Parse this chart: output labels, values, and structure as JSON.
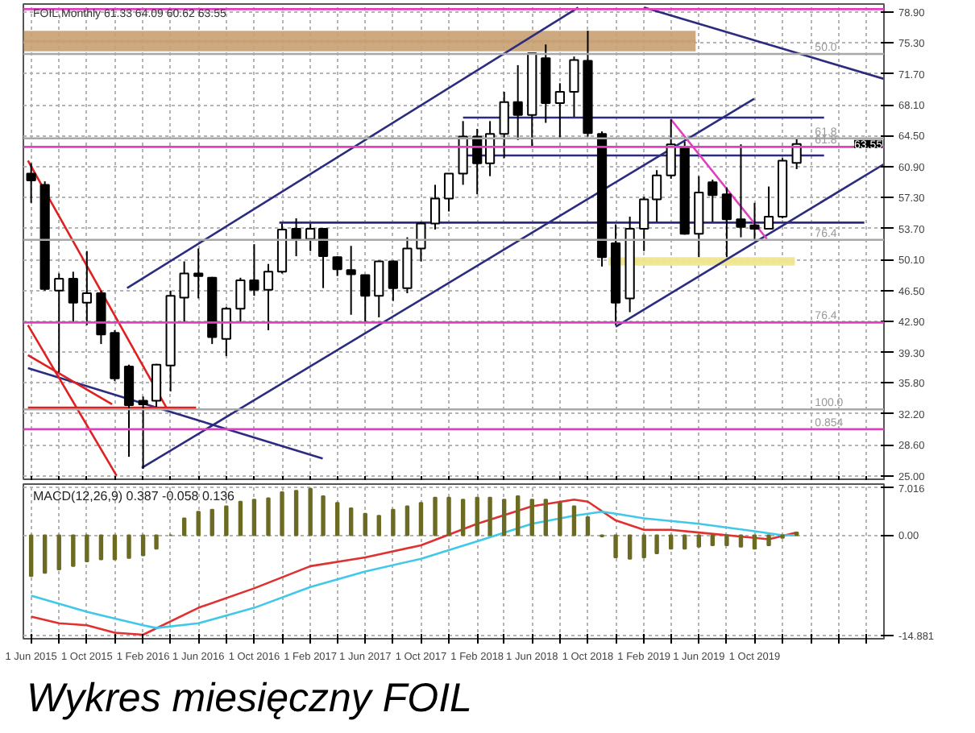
{
  "chart_data": [
    {
      "type": "candlestick",
      "subtitle": "FOIL,Monthly 61.33 64.09 60.62 63.55",
      "x": [
        "2015-06",
        "2015-07",
        "2015-08",
        "2015-09",
        "2015-10",
        "2015-11",
        "2015-12",
        "2016-01",
        "2016-02",
        "2016-03",
        "2016-04",
        "2016-05",
        "2016-06",
        "2016-07",
        "2016-08",
        "2016-09",
        "2016-10",
        "2016-11",
        "2016-12",
        "2017-01",
        "2017-02",
        "2017-03",
        "2017-04",
        "2017-05",
        "2017-06",
        "2017-07",
        "2017-08",
        "2017-09",
        "2017-10",
        "2017-11",
        "2017-12",
        "2018-01",
        "2018-02",
        "2018-03",
        "2018-04",
        "2018-05",
        "2018-06",
        "2018-07",
        "2018-08",
        "2018-09",
        "2018-10",
        "2018-11",
        "2018-12",
        "2019-01",
        "2019-02",
        "2019-03",
        "2019-04",
        "2019-05",
        "2019-06",
        "2019-07",
        "2019-08",
        "2019-09",
        "2019-10",
        "2019-11",
        "2019-12",
        "2020-01"
      ],
      "ohlc": [
        [
          60.1,
          61.3,
          56.7,
          59.3
        ],
        [
          58.8,
          59.2,
          46.5,
          46.7
        ],
        [
          46.5,
          48.5,
          37.0,
          47.9
        ],
        [
          47.9,
          48.7,
          42.8,
          45.1
        ],
        [
          45.1,
          51.1,
          42.5,
          46.2
        ],
        [
          46.2,
          46.5,
          40.3,
          41.4
        ],
        [
          41.6,
          41.9,
          36.0,
          36.3
        ],
        [
          37.7,
          37.9,
          27.2,
          33.2
        ],
        [
          33.7,
          34.2,
          25.8,
          33.3
        ],
        [
          33.7,
          38.0,
          33.0,
          37.9
        ],
        [
          37.8,
          46.5,
          34.8,
          45.9
        ],
        [
          45.7,
          49.9,
          42.8,
          48.5
        ],
        [
          48.5,
          51.4,
          45.6,
          48.2
        ],
        [
          48.0,
          48.1,
          40.3,
          41.1
        ],
        [
          40.9,
          44.6,
          38.9,
          44.4
        ],
        [
          44.4,
          48.0,
          42.8,
          47.7
        ],
        [
          47.7,
          51.9,
          45.9,
          46.6
        ],
        [
          46.6,
          49.6,
          41.9,
          48.7
        ],
        [
          48.7,
          54.3,
          48.5,
          53.6
        ],
        [
          53.7,
          54.9,
          50.5,
          52.5
        ],
        [
          52.5,
          54.3,
          51.1,
          53.7
        ],
        [
          53.7,
          53.7,
          46.8,
          50.5
        ],
        [
          50.4,
          50.5,
          48.2,
          49.0
        ],
        [
          48.9,
          51.7,
          43.7,
          48.4
        ],
        [
          48.3,
          48.3,
          42.8,
          45.9
        ],
        [
          45.9,
          50.0,
          43.4,
          49.9
        ],
        [
          49.9,
          50.0,
          45.3,
          46.8
        ],
        [
          46.8,
          52.7,
          46.2,
          51.4
        ],
        [
          51.4,
          54.5,
          49.9,
          54.3
        ],
        [
          54.3,
          58.8,
          53.6,
          57.2
        ],
        [
          57.2,
          60.1,
          55.7,
          60.1
        ],
        [
          60.1,
          66.2,
          58.8,
          64.4
        ],
        [
          64.4,
          65.3,
          57.7,
          61.3
        ],
        [
          61.3,
          66.2,
          59.8,
          64.7
        ],
        [
          64.7,
          69.6,
          61.9,
          68.4
        ],
        [
          68.4,
          72.7,
          64.0,
          66.9
        ],
        [
          66.9,
          74.1,
          63.2,
          74.1
        ],
        [
          73.5,
          75.1,
          66.0,
          68.3
        ],
        [
          68.3,
          70.6,
          64.3,
          69.6
        ],
        [
          69.6,
          73.7,
          66.7,
          73.3
        ],
        [
          73.2,
          76.7,
          64.4,
          64.8
        ],
        [
          64.7,
          65.0,
          49.3,
          50.4
        ],
        [
          52.0,
          54.2,
          42.5,
          45.1
        ],
        [
          45.6,
          55.1,
          44.0,
          53.7
        ],
        [
          53.7,
          57.4,
          51.1,
          57.1
        ],
        [
          57.1,
          60.5,
          54.5,
          59.9
        ],
        [
          59.9,
          66.4,
          59.5,
          63.5
        ],
        [
          63.2,
          63.8,
          53.0,
          53.1
        ],
        [
          53.1,
          59.8,
          50.4,
          57.9
        ],
        [
          59.1,
          59.4,
          54.5,
          57.6
        ],
        [
          57.7,
          58.5,
          50.4,
          54.8
        ],
        [
          54.8,
          63.5,
          52.7,
          53.9
        ],
        [
          54.1,
          56.7,
          52.4,
          53.7
        ],
        [
          53.7,
          58.6,
          53.6,
          55.1
        ],
        [
          55.1,
          61.9,
          54.9,
          61.6
        ],
        [
          61.33,
          64.09,
          60.62,
          63.55
        ]
      ],
      "series": [
        {
          "type": "line",
          "color": "#c8a072",
          "x": [
            "2015-05-16",
            "2019-05-25"
          ],
          "values": [
            75.5,
            75.5
          ],
          "lower": [
            74.3,
            74.3
          ],
          "upper": [
            76.7,
            76.7
          ]
        },
        {
          "type": "line",
          "color": "#f0e68c",
          "x": [
            "2018-11-15",
            "2019-12-28"
          ],
          "values": [
            49.9,
            49.9
          ],
          "lower": [
            49.4,
            49.4
          ],
          "upper": [
            50.4,
            50.4
          ]
        },
        {
          "type": "line",
          "color": "#2b2b80",
          "x": [
            "2016-01-29",
            "2019-09-30"
          ],
          "values": [
            25.9,
            68.8
          ]
        },
        {
          "type": "line",
          "color": "#2b2b80",
          "x": [
            "2015-12-28",
            "2018-09-10"
          ],
          "values": [
            46.8,
            79.4
          ]
        },
        {
          "type": "line",
          "color": "#2b2b80",
          "x": [
            "2018-12-01",
            "2020-07-10"
          ],
          "values": [
            42.3,
            61.2
          ]
        },
        {
          "type": "line",
          "color": "#2b2b80",
          "x": [
            "2019-02-01",
            "2020-07-10"
          ],
          "values": [
            79.4,
            71.1
          ]
        },
        {
          "type": "line",
          "color": "#2b2b80",
          "x": [
            "2015-05-25",
            "2017-02-28"
          ],
          "values": [
            37.5,
            27.0
          ]
        },
        {
          "type": "line",
          "color": "#2b2b80",
          "x": [
            "2016-11-25",
            "2020-05-28"
          ],
          "values": [
            54.4,
            54.4
          ]
        },
        {
          "type": "line",
          "color": "#2b2b80",
          "x": [
            "2018-01-01",
            "2020-03-01"
          ],
          "values": [
            66.6,
            66.6
          ]
        },
        {
          "type": "line",
          "color": "#2b2b80",
          "x": [
            "2018-01-01",
            "2020-03-01"
          ],
          "values": [
            62.2,
            62.2
          ]
        },
        {
          "type": "line",
          "color": "#e02020",
          "x": [
            "2015-05-25",
            "2016-03-23"
          ],
          "values": [
            61.6,
            32.9
          ]
        },
        {
          "type": "line",
          "color": "#e02020",
          "x": [
            "2015-05-25",
            "2015-12-05"
          ],
          "values": [
            42.5,
            25.0
          ]
        },
        {
          "type": "line",
          "color": "#e02020",
          "x": [
            "2015-05-25",
            "2015-11-25"
          ],
          "values": [
            39.0,
            33.3
          ]
        },
        {
          "type": "line",
          "color": "#e02020",
          "x": [
            "2015-05-25",
            "2016-05-27"
          ],
          "values": [
            32.9,
            32.9
          ]
        },
        {
          "type": "line",
          "color": "#e040c0",
          "x": [
            "2019-04-01",
            "2019-10-28"
          ],
          "values": [
            66.4,
            52.5
          ]
        }
      ],
      "ref_lines": [
        {
          "axis": "y",
          "value": 79.2,
          "color": "#e040c0"
        },
        {
          "axis": "y",
          "value": 74.0,
          "color": "#a8a8a8"
        },
        {
          "axis": "y",
          "value": 64.2,
          "color": "#a8a8a8"
        },
        {
          "axis": "y",
          "value": 63.2,
          "color": "#e040c0"
        },
        {
          "axis": "y",
          "value": 52.4,
          "color": "#a8a8a8"
        },
        {
          "axis": "y",
          "value": 42.8,
          "color": "#e040c0"
        },
        {
          "axis": "y",
          "value": 32.7,
          "color": "#a8a8a8"
        },
        {
          "axis": "y",
          "value": 30.4,
          "color": "#e040c0"
        }
      ],
      "annotations": [
        {
          "text": "63.55",
          "x": "2020-07-10",
          "y": 63.55
        },
        {
          "text": "50.0",
          "x": "2020-02-10",
          "y": 74.0
        },
        {
          "text": "61.8",
          "x": "2020-02-10",
          "y": 64.2
        },
        {
          "text": "61.8",
          "x": "2020-02-10",
          "y": 63.2
        },
        {
          "text": "76.4",
          "x": "2020-02-10",
          "y": 52.4
        },
        {
          "text": "76.4",
          "x": "2020-02-10",
          "y": 42.8
        },
        {
          "text": "100.0",
          "x": "2020-02-10",
          "y": 32.7
        },
        {
          "text": "0.854",
          "x": "2020-02-10",
          "y": 30.4
        }
      ],
      "xlim": [
        "2015-05-15",
        "2020-07-10"
      ],
      "xticks": [
        {
          "value": "2015-06",
          "label": null
        },
        {
          "value": "2015-08",
          "label": null
        },
        {
          "value": "2015-10",
          "label": null
        },
        {
          "value": "2015-12",
          "label": null
        },
        {
          "value": "2016-02",
          "label": null
        },
        {
          "value": "2016-04",
          "label": null
        },
        {
          "value": "2016-06",
          "label": null
        },
        {
          "value": "2016-08",
          "label": null
        },
        {
          "value": "2016-10",
          "label": null
        },
        {
          "value": "2016-12",
          "label": null
        },
        {
          "value": "2017-02",
          "label": null
        },
        {
          "value": "2017-04",
          "label": null
        },
        {
          "value": "2017-06",
          "label": null
        },
        {
          "value": "2017-08",
          "label": null
        },
        {
          "value": "2017-10",
          "label": null
        },
        {
          "value": "2017-12",
          "label": null
        },
        {
          "value": "2018-02",
          "label": null
        },
        {
          "value": "2018-04",
          "label": null
        },
        {
          "value": "2018-06",
          "label": null
        },
        {
          "value": "2018-08",
          "label": null
        },
        {
          "value": "2018-10",
          "label": null
        },
        {
          "value": "2018-12",
          "label": null
        },
        {
          "value": "2019-02",
          "label": null
        },
        {
          "value": "2019-04",
          "label": null
        },
        {
          "value": "2019-06",
          "label": null
        },
        {
          "value": "2019-08",
          "label": null
        },
        {
          "value": "2019-10",
          "label": null
        },
        {
          "value": "2019-12",
          "label": null
        },
        {
          "value": "2020-02",
          "label": null
        },
        {
          "value": "2020-04",
          "label": null
        },
        {
          "value": "2020-06",
          "label": null
        }
      ],
      "ylim": [
        24.4,
        79.8
      ],
      "yticks": [
        {
          "value": 78.9,
          "label": "78.90"
        },
        {
          "value": 75.3,
          "label": "75.30"
        },
        {
          "value": 71.7,
          "label": "71.70"
        },
        {
          "value": 68.1,
          "label": "68.10"
        },
        {
          "value": 64.5,
          "label": "64.50"
        },
        {
          "value": 60.9,
          "label": "60.90"
        },
        {
          "value": 57.3,
          "label": "57.30"
        },
        {
          "value": 53.7,
          "label": "53.70"
        },
        {
          "value": 50.1,
          "label": "50.10"
        },
        {
          "value": 46.5,
          "label": "46.50"
        },
        {
          "value": 42.9,
          "label": "42.90"
        },
        {
          "value": 39.3,
          "label": "39.30"
        },
        {
          "value": 35.8,
          "label": "35.80"
        },
        {
          "value": 32.2,
          "label": "32.20"
        },
        {
          "value": 28.6,
          "label": "28.60"
        },
        {
          "value": 25.0,
          "label": "25.00"
        }
      ],
      "tick_labels": "y",
      "grid": true
    },
    {
      "type": "bar",
      "title": "MACD(12,26,9) 0.387 -0.058 0.136",
      "x": [
        "2015-06",
        "2015-07",
        "2015-08",
        "2015-09",
        "2015-10",
        "2015-11",
        "2015-12",
        "2016-01",
        "2016-02",
        "2016-03",
        "2016-04",
        "2016-05",
        "2016-06",
        "2016-07",
        "2016-08",
        "2016-09",
        "2016-10",
        "2016-11",
        "2016-12",
        "2017-01",
        "2017-02",
        "2017-03",
        "2017-04",
        "2017-05",
        "2017-06",
        "2017-07",
        "2017-08",
        "2017-09",
        "2017-10",
        "2017-11",
        "2017-12",
        "2018-01",
        "2018-02",
        "2018-03",
        "2018-04",
        "2018-05",
        "2018-06",
        "2018-07",
        "2018-08",
        "2018-09",
        "2018-10",
        "2018-11",
        "2018-12",
        "2019-01",
        "2019-02",
        "2019-03",
        "2019-04",
        "2019-05",
        "2019-06",
        "2019-07",
        "2019-08",
        "2019-09",
        "2019-10",
        "2019-11",
        "2019-12",
        "2020-01"
      ],
      "series": [
        {
          "type": "bar",
          "color": "#6b6b23",
          "values": [
            -6.1,
            -5.6,
            -5.1,
            -4.6,
            -3.9,
            -3.6,
            -3.6,
            -3.4,
            -3.0,
            -2.0,
            0,
            2.5,
            3.5,
            3.8,
            4.3,
            5.0,
            5.3,
            5.5,
            6.4,
            6.6,
            6.9,
            5.8,
            4.8,
            4.0,
            3.2,
            2.9,
            3.8,
            4.3,
            4.8,
            5.6,
            5.6,
            5.3,
            5.6,
            5.6,
            5.3,
            5.8,
            5.3,
            5.3,
            4.8,
            4.3,
            2.7,
            -0.2,
            -3.3,
            -3.5,
            -3.3,
            -2.7,
            -2.0,
            -2.0,
            -1.7,
            -1.5,
            -1.5,
            -1.7,
            -2.0,
            -1.5,
            -0.4,
            0.4
          ]
        },
        {
          "type": "line",
          "color": "#e03030",
          "x": [
            "2015-06",
            "2015-08",
            "2015-10",
            "2015-12",
            "2016-02",
            "2016-06",
            "2016-10",
            "2017-02",
            "2017-06",
            "2017-10",
            "2018-02",
            "2018-06",
            "2018-09",
            "2018-10",
            "2018-12",
            "2019-02",
            "2019-04",
            "2019-06",
            "2019-10",
            "2019-11",
            "2020-01"
          ],
          "values": [
            -12.1,
            -13.1,
            -13.4,
            -14.5,
            -14.8,
            -10.8,
            -7.9,
            -4.6,
            -3.3,
            -1.5,
            1.7,
            4.3,
            5.3,
            5.0,
            2.2,
            0.8,
            0.8,
            0.4,
            -0.4,
            -0.6,
            0.4
          ]
        },
        {
          "type": "line",
          "color": "#40c8e8",
          "x": [
            "2015-06",
            "2015-10",
            "2016-02",
            "2016-03",
            "2016-06",
            "2016-10",
            "2017-02",
            "2017-06",
            "2017-10",
            "2018-02",
            "2018-06",
            "2018-09",
            "2018-11",
            "2018-12",
            "2019-02",
            "2019-06",
            "2019-10",
            "2019-12",
            "2020-01"
          ],
          "values": [
            -9.0,
            -11.4,
            -13.4,
            -13.8,
            -13.1,
            -10.8,
            -7.7,
            -5.4,
            -3.5,
            -0.9,
            1.7,
            2.9,
            3.5,
            3.2,
            2.5,
            1.7,
            0.6,
            0,
            0
          ]
        }
      ],
      "annotations": [
        "Wykres miesięczny FOIL"
      ],
      "xlim": [
        "2015-05-15",
        "2020-07-10"
      ],
      "xticks": [
        {
          "value": "2015-06",
          "label": "1 Jun 2015"
        },
        {
          "value": "2015-08",
          "label": null
        },
        {
          "value": "2015-10",
          "label": "1 Oct 2015"
        },
        {
          "value": "2015-12",
          "label": null
        },
        {
          "value": "2016-02",
          "label": "1 Feb 2016"
        },
        {
          "value": "2016-04",
          "label": null
        },
        {
          "value": "2016-06",
          "label": "1 Jun 2016"
        },
        {
          "value": "2016-08",
          "label": null
        },
        {
          "value": "2016-10",
          "label": "1 Oct 2016"
        },
        {
          "value": "2016-12",
          "label": null
        },
        {
          "value": "2017-02",
          "label": "1 Feb 2017"
        },
        {
          "value": "2017-04",
          "label": null
        },
        {
          "value": "2017-06",
          "label": "1 Jun 2017"
        },
        {
          "value": "2017-08",
          "label": null
        },
        {
          "value": "2017-10",
          "label": "1 Oct 2017"
        },
        {
          "value": "2017-12",
          "label": null
        },
        {
          "value": "2018-02",
          "label": "1 Feb 2018"
        },
        {
          "value": "2018-04",
          "label": null
        },
        {
          "value": "2018-06",
          "label": "1 Jun 2018"
        },
        {
          "value": "2018-08",
          "label": null
        },
        {
          "value": "2018-10",
          "label": "1 Oct 2018"
        },
        {
          "value": "2018-12",
          "label": null
        },
        {
          "value": "2019-02",
          "label": "1 Feb 2019"
        },
        {
          "value": "2019-04",
          "label": null
        },
        {
          "value": "2019-06",
          "label": "1 Jun 2019"
        },
        {
          "value": "2019-08",
          "label": null
        },
        {
          "value": "2019-10",
          "label": "1 Oct 2019"
        },
        {
          "value": "2019-12",
          "label": null
        },
        {
          "value": "2020-02",
          "label": null
        },
        {
          "value": "2020-04",
          "label": null
        },
        {
          "value": "2020-06",
          "label": null
        }
      ],
      "ylim": [
        -15.4,
        7.6
      ],
      "yticks": [
        7.016,
        {
          "value": 0,
          "label": "0.00"
        },
        -14.881
      ],
      "grid": true
    }
  ]
}
